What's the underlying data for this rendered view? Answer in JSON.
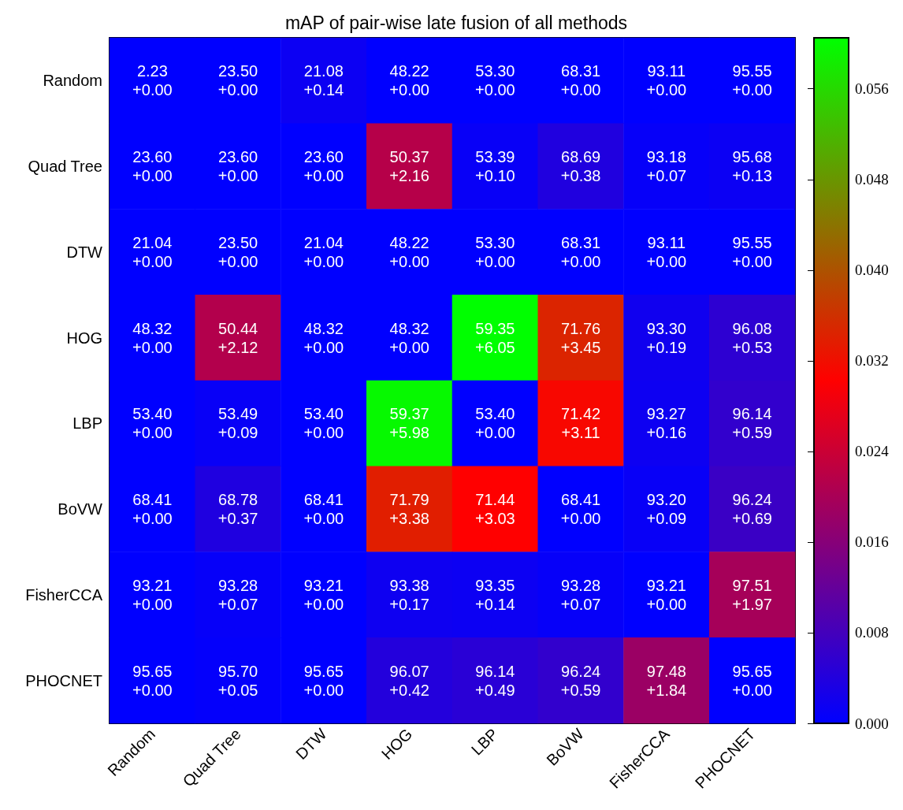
{
  "chart_data": {
    "type": "heatmap",
    "title": "mAP of pair-wise late fusion of all methods",
    "categories": [
      "Random",
      "Quad Tree",
      "DTW",
      "HOG",
      "LBP",
      "BoVW",
      "FisherCCA",
      "PHOCNET"
    ],
    "y_categories": [
      "Random",
      "Quad Tree",
      "DTW",
      "HOG",
      "LBP",
      "BoVW",
      "FisherCCA",
      "PHOCNET"
    ],
    "cells": [
      [
        0,
        0,
        0.0014,
        0,
        0,
        0,
        0,
        0
      ],
      [
        0,
        0,
        0,
        0.0216,
        0.001,
        0.0038,
        0.0007,
        0.0013
      ],
      [
        0,
        0,
        0,
        0,
        0,
        0,
        0,
        0
      ],
      [
        0,
        0.0212,
        0,
        0,
        0.0605,
        0.0345,
        0.0019,
        0.0053
      ],
      [
        0,
        0.0009,
        0,
        0.0598,
        0,
        0.0311,
        0.0016,
        0.0059
      ],
      [
        0,
        0.0037,
        0,
        0.0338,
        0.0303,
        0,
        0.0009,
        0.0069
      ],
      [
        0,
        0.0007,
        0,
        0.0017,
        0.0014,
        0.0007,
        0,
        0.0197
      ],
      [
        0,
        0.0005,
        0,
        0.0042,
        0.0049,
        0.0059,
        0.0184,
        0
      ]
    ],
    "cell_labels": [
      [
        "2.23\n+0.00",
        "23.50\n+0.00",
        "21.08\n+0.14",
        "48.22\n+0.00",
        "53.30\n+0.00",
        "68.31\n+0.00",
        "93.11\n+0.00",
        "95.55\n+0.00"
      ],
      [
        "23.60\n+0.00",
        "23.60\n+0.00",
        "23.60\n+0.00",
        "50.37\n+2.16",
        "53.39\n+0.10",
        "68.69\n+0.38",
        "93.18\n+0.07",
        "95.68\n+0.13"
      ],
      [
        "21.04\n+0.00",
        "23.50\n+0.00",
        "21.04\n+0.00",
        "48.22\n+0.00",
        "53.30\n+0.00",
        "68.31\n+0.00",
        "93.11\n+0.00",
        "95.55\n+0.00"
      ],
      [
        "48.32\n+0.00",
        "50.44\n+2.12",
        "48.32\n+0.00",
        "48.32\n+0.00",
        "59.35\n+6.05",
        "71.76\n+3.45",
        "93.30\n+0.19",
        "96.08\n+0.53"
      ],
      [
        "53.40\n+0.00",
        "53.49\n+0.09",
        "53.40\n+0.00",
        "59.37\n+5.98",
        "53.40\n+0.00",
        "71.42\n+3.11",
        "93.27\n+0.16",
        "96.14\n+0.59"
      ],
      [
        "68.41\n+0.00",
        "68.78\n+0.37",
        "68.41\n+0.00",
        "71.79\n+3.38",
        "71.44\n+3.03",
        "68.41\n+0.00",
        "93.20\n+0.09",
        "96.24\n+0.69"
      ],
      [
        "93.21\n+0.00",
        "93.28\n+0.07",
        "93.21\n+0.00",
        "93.38\n+0.17",
        "93.35\n+0.14",
        "93.28\n+0.07",
        "93.21\n+0.00",
        "97.51\n+1.97"
      ],
      [
        "95.65\n+0.00",
        "95.70\n+0.05",
        "95.65\n+0.00",
        "96.07\n+0.42",
        "96.14\n+0.49",
        "96.24\n+0.59",
        "97.48\n+1.84",
        "95.65\n+0.00"
      ]
    ],
    "clim": [
      0,
      0.0605
    ],
    "cticks": [
      {
        "value": 0,
        "label": "0.000"
      },
      {
        "value": 0.008,
        "label": "0.008"
      },
      {
        "value": 0.016,
        "label": "0.016"
      },
      {
        "value": 0.024,
        "label": "0.024"
      },
      {
        "value": 0.032,
        "label": "0.032"
      },
      {
        "value": 0.04,
        "label": "0.040"
      },
      {
        "value": 0.048,
        "label": "0.048"
      },
      {
        "value": 0.056,
        "label": "0.056"
      }
    ]
  }
}
